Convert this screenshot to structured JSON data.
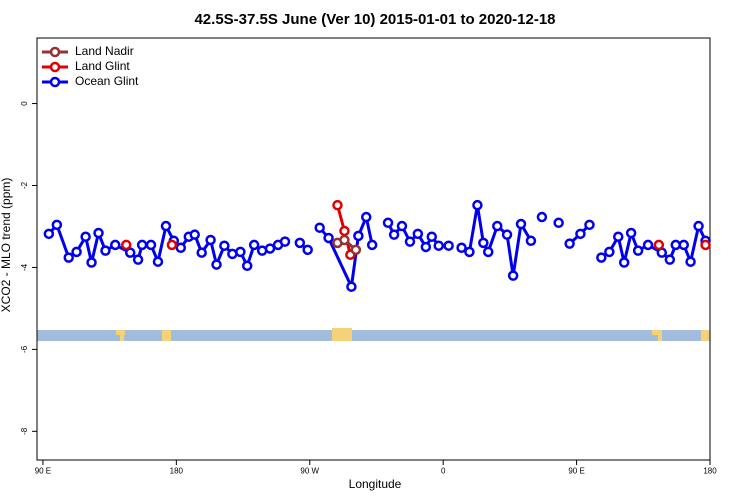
{
  "chart_data": {
    "type": "line",
    "title": "42.5S-37.5S June (Ver 10)   2015-01-01 to 2020-12-18",
    "xlabel": "Longitude",
    "ylabel": "XCO2 - MLO trend (ppm)",
    "xlim": [
      86,
      540
    ],
    "ylim": [
      -8.7,
      1.6
    ],
    "xticks": [
      {
        "value": 90,
        "label": "90 E"
      },
      180,
      {
        "value": 270,
        "label": "90 W"
      },
      {
        "value": 360,
        "label": "0"
      },
      {
        "value": 450,
        "label": "90 E"
      },
      {
        "value": 540,
        "label": "180"
      }
    ],
    "yticks": [
      0,
      -2,
      -4,
      -6,
      -8
    ],
    "legend": "top-left",
    "series": [
      {
        "name": "Land Nadir",
        "color": "#963232",
        "x": [
          288.7,
          293.4,
          301.1
        ],
        "values": [
          -3.4,
          -3.33,
          -3.57
        ]
      },
      {
        "name": "Land Glint",
        "color": "#e00000",
        "x": [
          146.2,
          null,
          177.0,
          null,
          288.7,
          293.4,
          297.4,
          null,
          505.5,
          null,
          537.0
        ],
        "values": [
          -3.45,
          null,
          -3.45,
          null,
          -2.48,
          -3.11,
          -3.69,
          null,
          -3.45,
          null,
          -3.45
        ]
      },
      {
        "name": "Ocean Glint",
        "color": "#0000ee",
        "x": [
          94.0,
          99.4,
          107.4,
          112.7,
          118.8,
          122.8,
          127.5,
          132.2,
          138.8,
          148.9,
          154.2,
          156.9,
          162.9,
          167.6,
          173.0,
          178.3,
          183.0,
          188.4,
          192.4,
          197.1,
          203.1,
          207.1,
          212.4,
          217.8,
          223.2,
          227.8,
          232.5,
          237.9,
          243.2,
          248.6,
          253.3,
          null,
          263.3,
          268.6,
          null,
          276.7,
          282.7,
          298.1,
          302.8,
          308.1,
          312.1,
          null,
          322.8,
          326.9,
          332.2,
          337.6,
          342.9,
          348.3,
          352.3,
          357.0,
          363.7,
          null,
          372.4,
          377.7,
          383.1,
          387.1,
          390.4,
          396.5,
          403.1,
          407.2,
          412.5,
          419.2,
          null,
          426.6,
          null,
          437.9,
          null,
          445.3,
          452.6,
          458.7,
          null,
          466.7,
          472.1,
          478.1,
          482.1,
          486.8,
          491.5,
          498.2,
          507.5,
          512.9,
          516.9,
          522.3,
          526.9,
          532.3,
          537.0
        ],
        "values": [
          -3.18,
          -2.96,
          -3.76,
          -3.62,
          -3.25,
          -3.88,
          -3.16,
          -3.59,
          -3.45,
          -3.64,
          -3.81,
          -3.45,
          -3.45,
          -3.86,
          -2.99,
          -3.35,
          -3.52,
          -3.25,
          -3.2,
          -3.64,
          -3.33,
          -3.93,
          -3.47,
          -3.67,
          -3.62,
          -3.96,
          -3.45,
          -3.59,
          -3.54,
          -3.45,
          -3.37,
          null,
          -3.4,
          -3.57,
          null,
          -3.03,
          -3.28,
          -4.47,
          -3.23,
          -2.77,
          -3.45,
          null,
          -2.91,
          -3.2,
          -2.99,
          -3.37,
          -3.18,
          -3.5,
          -3.25,
          -3.47,
          -3.47,
          null,
          -3.52,
          -3.62,
          -2.48,
          -3.4,
          -3.62,
          -2.99,
          -3.2,
          -4.2,
          -2.94,
          -3.35,
          null,
          -2.77,
          null,
          -2.91,
          null,
          -3.42,
          -3.18,
          -2.96,
          null,
          -3.76,
          -3.62,
          -3.25,
          -3.88,
          -3.16,
          -3.59,
          -3.45,
          -3.64,
          -3.81,
          -3.45,
          -3.45,
          -3.86,
          -2.99,
          -3.35
        ]
      }
    ]
  }
}
